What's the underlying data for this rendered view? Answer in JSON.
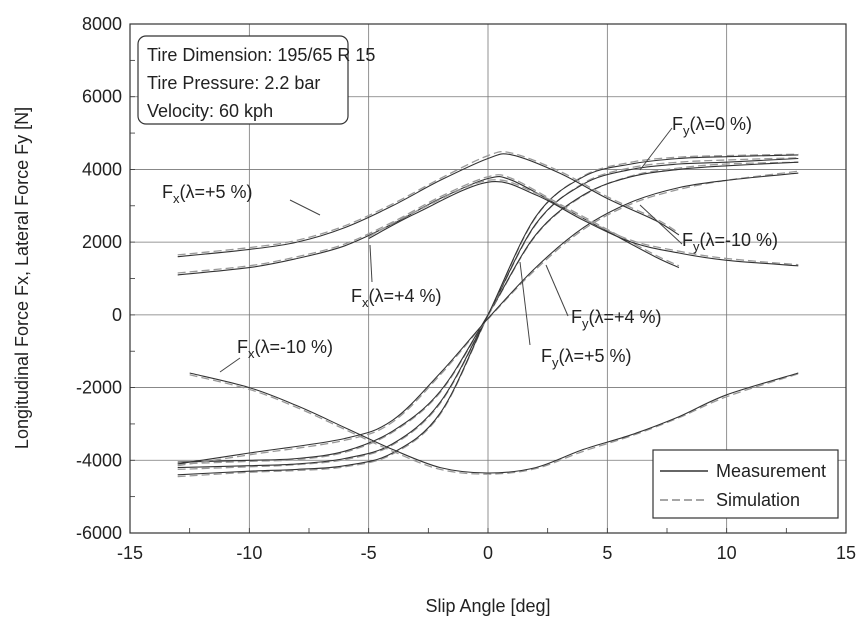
{
  "chart_data": {
    "type": "line",
    "xlabel": "Slip Angle [deg]",
    "ylabel": "Longitudinal Force Fx, Lateral Force Fy [N]",
    "xlim": [
      -15,
      15
    ],
    "ylim": [
      -6000,
      8000
    ],
    "xticks": [
      "-15",
      "-10",
      "-5",
      "0",
      "5",
      "10",
      "15"
    ],
    "yticks": [
      "-6000",
      "-4000",
      "-2000",
      "0",
      "2000",
      "4000",
      "6000",
      "8000"
    ],
    "grid": true,
    "info_box": [
      "Tire Dimension: 195/65 R 15",
      "Tire Pressure: 2.2 bar",
      "Velocity: 60 kph"
    ],
    "legend": {
      "placement": "bottom-right",
      "entries": [
        {
          "label": "Measurement",
          "style": "solid"
        },
        {
          "label": "Simulation",
          "style": "dashed"
        }
      ]
    },
    "annotations": [
      {
        "main": "F",
        "sub": "y",
        "rest": "(λ=0 %)"
      },
      {
        "main": "F",
        "sub": "x",
        "rest": "(λ=+5 %)"
      },
      {
        "main": "F",
        "sub": "y",
        "rest": "(λ=-10 %)"
      },
      {
        "main": "F",
        "sub": "x",
        "rest": "(λ=+4 %)"
      },
      {
        "main": "F",
        "sub": "y",
        "rest": "(λ=+4 %)"
      },
      {
        "main": "F",
        "sub": "x",
        "rest": "(λ=-10 %)"
      },
      {
        "main": "F",
        "sub": "y",
        "rest": "(λ=+5 %)"
      }
    ],
    "series": [
      {
        "measurement": [
          [
            -13,
            -4050
          ],
          [
            -10,
            -4000
          ],
          [
            -8,
            -3950
          ],
          [
            -6,
            -3750
          ],
          [
            -4,
            -3200
          ],
          [
            -2,
            -2100
          ],
          [
            0,
            0
          ],
          [
            2,
            2200
          ],
          [
            4,
            3300
          ],
          [
            6,
            3800
          ],
          [
            8,
            4000
          ],
          [
            10,
            4100
          ],
          [
            13,
            4200
          ]
        ],
        "simulation": [
          [
            -13,
            -4100
          ],
          [
            -10,
            -4030
          ],
          [
            -8,
            -3980
          ],
          [
            -6,
            -3780
          ],
          [
            -4,
            -3230
          ],
          [
            -2,
            -2130
          ],
          [
            0,
            -20
          ],
          [
            2,
            2180
          ],
          [
            4,
            3280
          ],
          [
            6,
            3820
          ],
          [
            8,
            4040
          ],
          [
            10,
            4150
          ],
          [
            13,
            4200
          ]
        ]
      },
      {
        "measurement": [
          [
            -13,
            -4200
          ],
          [
            -10,
            -4150
          ],
          [
            -8,
            -4100
          ],
          [
            -6,
            -3950
          ],
          [
            -4,
            -3550
          ],
          [
            -2,
            -2400
          ],
          [
            0,
            0
          ],
          [
            2,
            2500
          ],
          [
            4,
            3600
          ],
          [
            6,
            4000
          ],
          [
            8,
            4150
          ],
          [
            10,
            4200
          ],
          [
            13,
            4300
          ]
        ],
        "simulation": [
          [
            -13,
            -4250
          ],
          [
            -10,
            -4180
          ],
          [
            -8,
            -4120
          ],
          [
            -6,
            -3980
          ],
          [
            -4,
            -3580
          ],
          [
            -2,
            -2430
          ],
          [
            0,
            -20
          ],
          [
            2,
            2480
          ],
          [
            4,
            3620
          ],
          [
            6,
            4050
          ],
          [
            8,
            4200
          ],
          [
            10,
            4260
          ],
          [
            13,
            4320
          ]
        ]
      },
      {
        "measurement": [
          [
            -13,
            -4400
          ],
          [
            -10,
            -4300
          ],
          [
            -8,
            -4250
          ],
          [
            -6,
            -4150
          ],
          [
            -4,
            -3800
          ],
          [
            -2,
            -2700
          ],
          [
            0,
            0
          ],
          [
            2,
            2700
          ],
          [
            4,
            3800
          ],
          [
            6,
            4150
          ],
          [
            8,
            4300
          ],
          [
            10,
            4350
          ],
          [
            13,
            4400
          ]
        ],
        "simulation": [
          [
            -13,
            -4450
          ],
          [
            -10,
            -4330
          ],
          [
            -8,
            -4280
          ],
          [
            -6,
            -4180
          ],
          [
            -4,
            -3830
          ],
          [
            -2,
            -2730
          ],
          [
            0,
            -20
          ],
          [
            2,
            2680
          ],
          [
            4,
            3820
          ],
          [
            6,
            4200
          ],
          [
            8,
            4340
          ],
          [
            10,
            4380
          ],
          [
            13,
            4420
          ]
        ]
      },
      {
        "measurement": [
          [
            -13,
            -4100
          ],
          [
            -10,
            -3800
          ],
          [
            -6,
            -3400
          ],
          [
            -4,
            -2900
          ],
          [
            -2,
            -1600
          ],
          [
            0,
            -100
          ],
          [
            2,
            1300
          ],
          [
            4,
            2400
          ],
          [
            6,
            3100
          ],
          [
            8,
            3500
          ],
          [
            10,
            3700
          ],
          [
            13,
            3900
          ]
        ],
        "simulation": [
          [
            -13,
            -4150
          ],
          [
            -10,
            -3850
          ],
          [
            -6,
            -3450
          ],
          [
            -4,
            -2950
          ],
          [
            -2,
            -1650
          ],
          [
            0,
            -120
          ],
          [
            2,
            1250
          ],
          [
            4,
            2350
          ],
          [
            6,
            3050
          ],
          [
            8,
            3450
          ],
          [
            10,
            3700
          ],
          [
            13,
            3950
          ]
        ]
      },
      {
        "measurement": [
          [
            -13,
            1600
          ],
          [
            -10,
            1800
          ],
          [
            -8,
            2000
          ],
          [
            -6,
            2400
          ],
          [
            -4,
            3000
          ],
          [
            -2,
            3700
          ],
          [
            0,
            4300
          ],
          [
            1,
            4400
          ],
          [
            3,
            3900
          ],
          [
            5,
            3200
          ],
          [
            7,
            2600
          ],
          [
            8,
            2200
          ]
        ],
        "simulation": [
          [
            -13,
            1650
          ],
          [
            -10,
            1850
          ],
          [
            -8,
            2050
          ],
          [
            -6,
            2450
          ],
          [
            -4,
            3050
          ],
          [
            -2,
            3750
          ],
          [
            0,
            4380
          ],
          [
            1,
            4450
          ],
          [
            3,
            3950
          ],
          [
            5,
            3250
          ],
          [
            7,
            2650
          ],
          [
            8,
            2250
          ]
        ]
      },
      {
        "measurement": [
          [
            -13,
            1100
          ],
          [
            -10,
            1300
          ],
          [
            -8,
            1550
          ],
          [
            -6,
            1900
          ],
          [
            -4,
            2500
          ],
          [
            -2,
            3200
          ],
          [
            0,
            3750
          ],
          [
            1,
            3700
          ],
          [
            3,
            3000
          ],
          [
            5,
            2300
          ],
          [
            7,
            1600
          ],
          [
            8,
            1300
          ]
        ],
        "simulation": [
          [
            -13,
            1150
          ],
          [
            -10,
            1350
          ],
          [
            -8,
            1600
          ],
          [
            -6,
            1950
          ],
          [
            -4,
            2550
          ],
          [
            -2,
            3250
          ],
          [
            0,
            3800
          ],
          [
            1,
            3750
          ],
          [
            3,
            3050
          ],
          [
            5,
            2350
          ],
          [
            7,
            1650
          ],
          [
            8,
            1350
          ]
        ]
      },
      {
        "measurement": [
          [
            -12.5,
            -1600
          ],
          [
            -10,
            -2000
          ],
          [
            -8,
            -2500
          ],
          [
            -6,
            -3100
          ],
          [
            -4,
            -3700
          ],
          [
            -2,
            -4200
          ],
          [
            0,
            -4350
          ],
          [
            2,
            -4200
          ],
          [
            4,
            -3700
          ],
          [
            6,
            -3300
          ],
          [
            8,
            -2800
          ],
          [
            10,
            -2200
          ],
          [
            13,
            -1600
          ]
        ],
        "simulation": [
          [
            -12.5,
            -1650
          ],
          [
            -10,
            -2050
          ],
          [
            -8,
            -2550
          ],
          [
            -6,
            -3150
          ],
          [
            -4,
            -3750
          ],
          [
            -2,
            -4250
          ],
          [
            0,
            -4380
          ],
          [
            2,
            -4230
          ],
          [
            4,
            -3750
          ],
          [
            6,
            -3330
          ],
          [
            8,
            -2830
          ],
          [
            10,
            -2250
          ],
          [
            13,
            -1620
          ]
        ]
      },
      {
        "measurement": [
          [
            -5,
            2100
          ],
          [
            -3,
            2800
          ],
          [
            0,
            3650
          ],
          [
            2,
            3300
          ],
          [
            4,
            2600
          ],
          [
            6,
            2000
          ],
          [
            8,
            1700
          ],
          [
            10,
            1500
          ],
          [
            13,
            1350
          ]
        ],
        "simulation": [
          [
            -5,
            2150
          ],
          [
            -3,
            2850
          ],
          [
            0,
            3700
          ],
          [
            2,
            3350
          ],
          [
            4,
            2650
          ],
          [
            6,
            2050
          ],
          [
            8,
            1750
          ],
          [
            10,
            1550
          ],
          [
            13,
            1380
          ]
        ]
      }
    ]
  }
}
